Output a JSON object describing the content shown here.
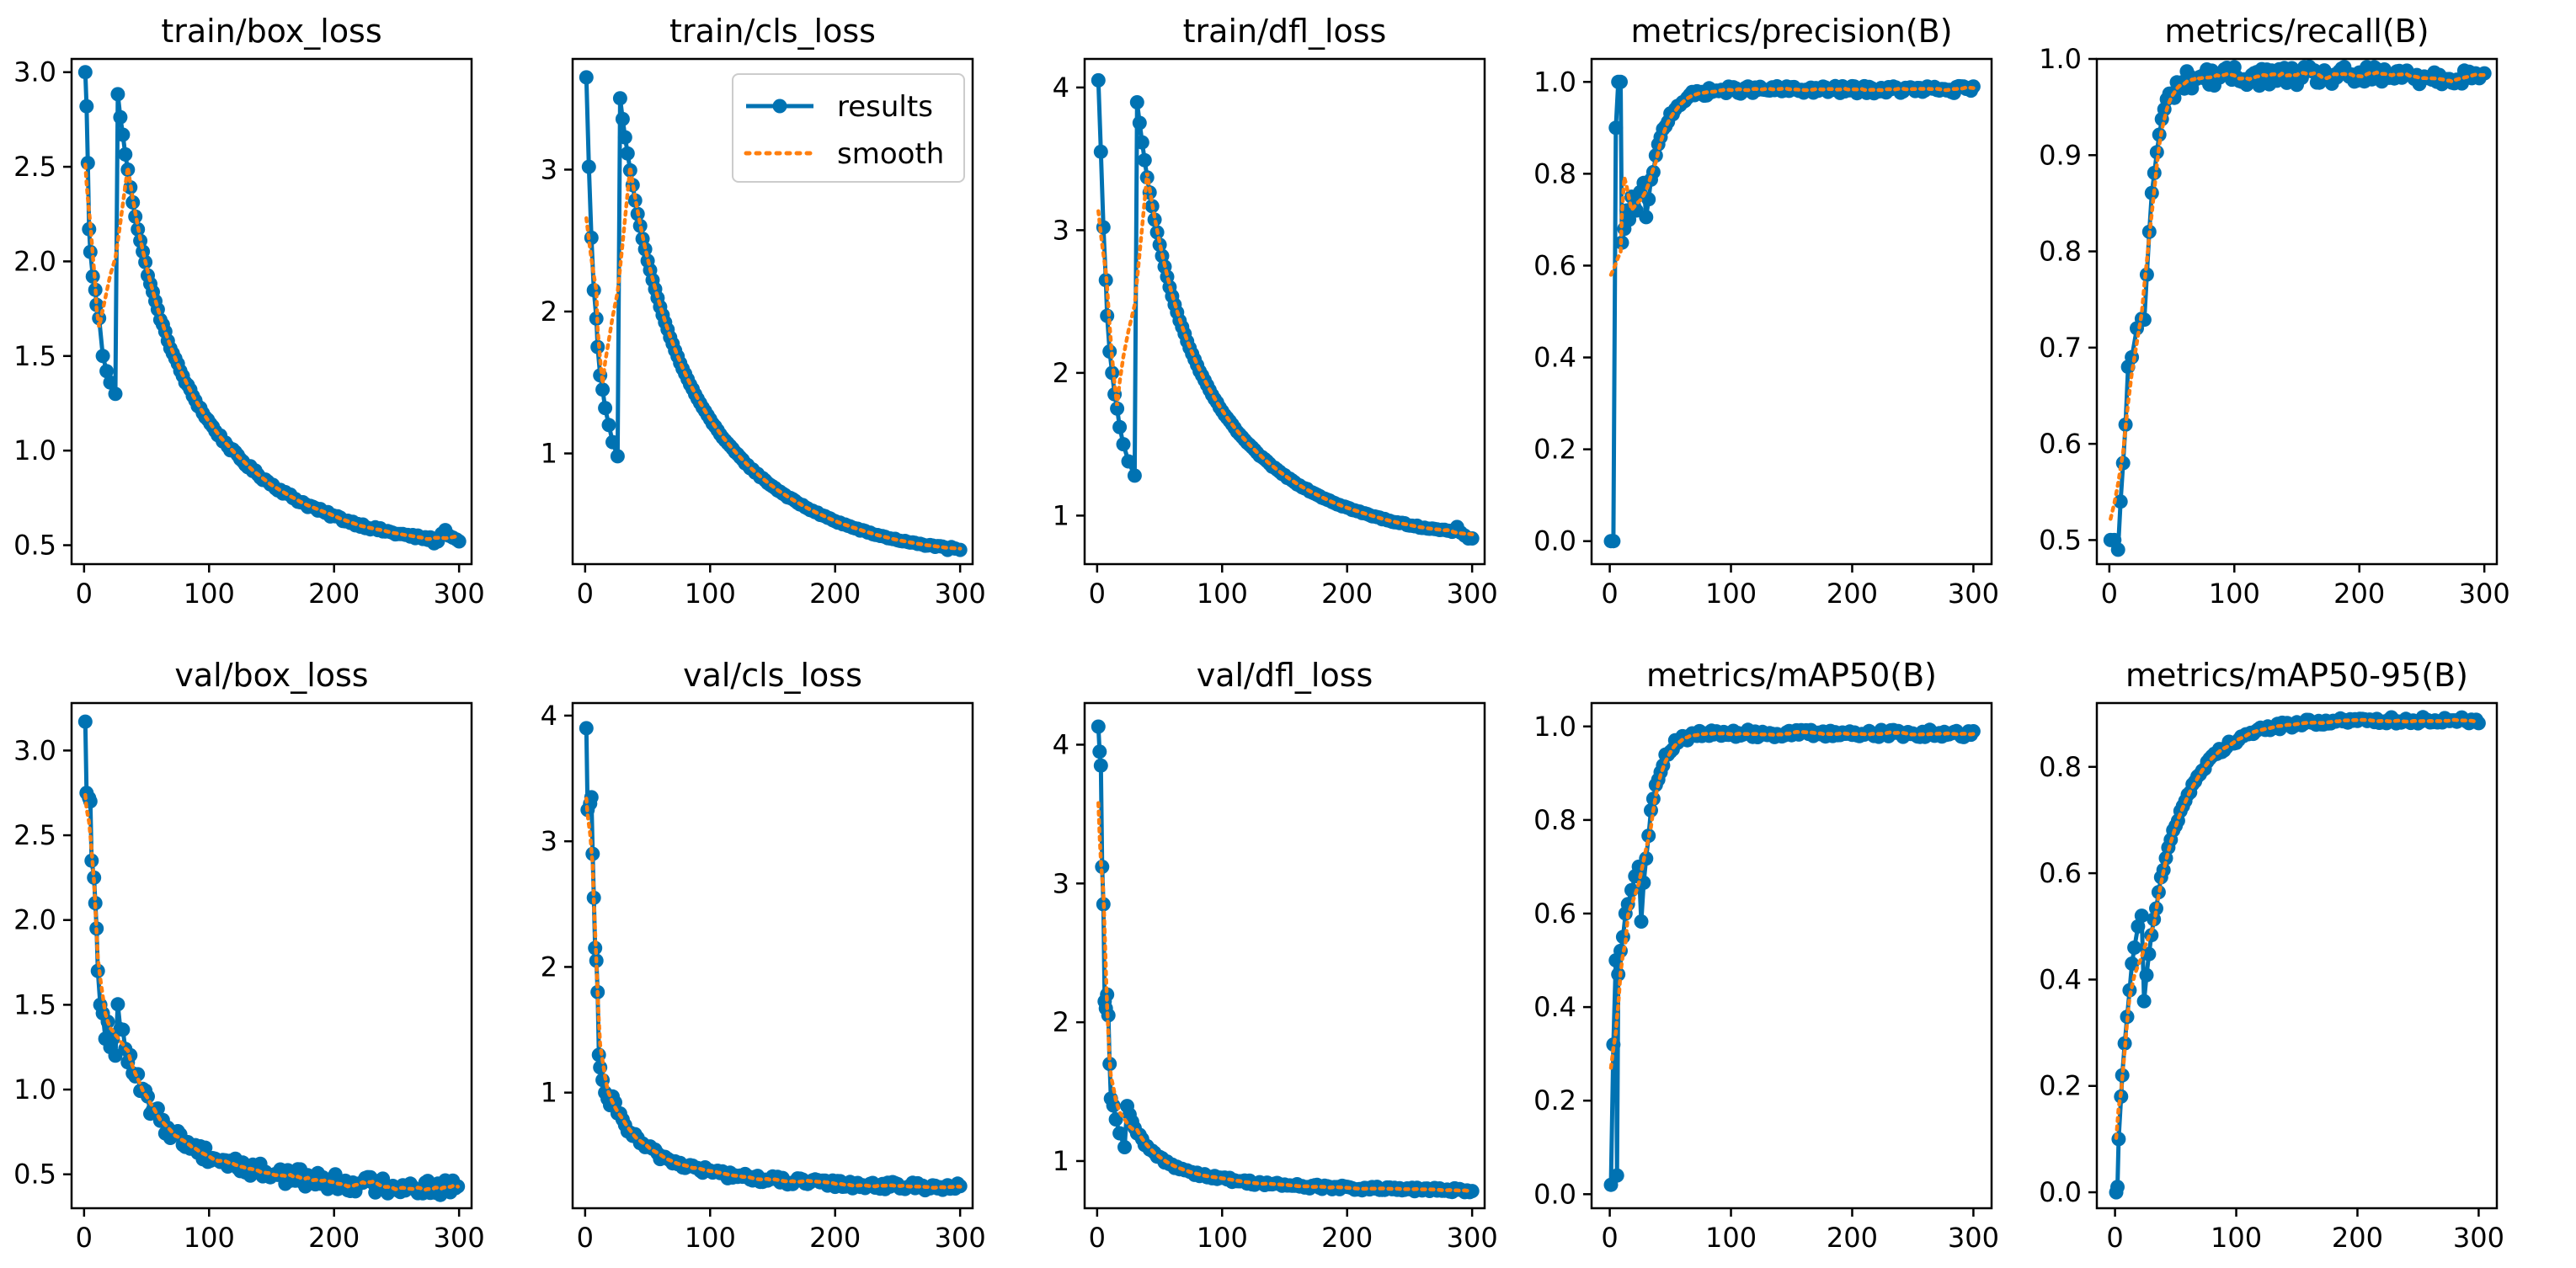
{
  "figure_title": "",
  "colors": {
    "results": "#0072B2",
    "smooth": "#FF7F0E",
    "axes": "#000000",
    "background": "#ffffff"
  },
  "legend": {
    "results_label": "results",
    "smooth_label": "smooth",
    "placement": "upper-right of train/cls_loss"
  },
  "chart_data": [
    {
      "type": "line",
      "title": "train/box_loss",
      "xlim": [
        -10,
        310
      ],
      "ylim": [
        0.4,
        3.07
      ],
      "xticks": [
        0,
        100,
        200,
        300
      ],
      "yticks": [
        0.5,
        1.0,
        1.5,
        2.0,
        2.5,
        3.0
      ],
      "curve": {
        "kind": "decay",
        "start": 3.0,
        "end": 0.52,
        "p": 1.0,
        "s": 0.18,
        "noise": 0.01
      },
      "early": [
        [
          1,
          3.0
        ],
        [
          2,
          2.82
        ],
        [
          3,
          2.52
        ],
        [
          4,
          2.17
        ],
        [
          5,
          2.05
        ],
        [
          7,
          1.92
        ],
        [
          9,
          1.85
        ],
        [
          10,
          1.77
        ],
        [
          12,
          1.7
        ],
        [
          15,
          1.5
        ],
        [
          18,
          1.42
        ],
        [
          21,
          1.36
        ],
        [
          25,
          1.3
        ]
      ],
      "late": [
        [
          280,
          0.51
        ],
        [
          283,
          0.52
        ],
        [
          286,
          0.56
        ],
        [
          289,
          0.58
        ],
        [
          292,
          0.55
        ],
        [
          295,
          0.54
        ],
        [
          298,
          0.53
        ],
        [
          300,
          0.52
        ]
      ]
    },
    {
      "type": "line",
      "title": "train/cls_loss",
      "xlim": [
        -10,
        310
      ],
      "ylim": [
        0.22,
        3.78
      ],
      "xticks": [
        0,
        100,
        200,
        300
      ],
      "yticks": [
        1,
        2,
        3
      ],
      "curve": {
        "kind": "decay",
        "start": 3.65,
        "end": 0.33,
        "p": 0.9,
        "s": 0.2,
        "noise": 0.005
      },
      "early": [
        [
          1,
          3.65
        ],
        [
          3,
          3.02
        ],
        [
          5,
          2.52
        ],
        [
          7,
          2.15
        ],
        [
          9,
          1.95
        ],
        [
          10,
          1.75
        ],
        [
          12,
          1.55
        ],
        [
          14,
          1.45
        ],
        [
          16,
          1.32
        ],
        [
          19,
          1.2
        ],
        [
          22,
          1.08
        ],
        [
          26,
          0.98
        ]
      ],
      "late": [
        [
          290,
          0.32
        ],
        [
          293,
          0.34
        ],
        [
          296,
          0.33
        ],
        [
          300,
          0.32
        ]
      ]
    },
    {
      "type": "line",
      "title": "train/dfl_loss",
      "xlim": [
        -10,
        310
      ],
      "ylim": [
        0.66,
        4.2
      ],
      "xticks": [
        0,
        100,
        200,
        300
      ],
      "yticks": [
        1,
        2,
        3,
        4
      ],
      "curve": {
        "kind": "decay",
        "start": 4.05,
        "end": 0.88,
        "p": 0.65,
        "s": 0.18,
        "noise": 0.005
      },
      "early": [
        [
          1,
          4.05
        ],
        [
          3,
          3.55
        ],
        [
          5,
          3.02
        ],
        [
          7,
          2.65
        ],
        [
          8,
          2.4
        ],
        [
          10,
          2.15
        ],
        [
          12,
          2.0
        ],
        [
          14,
          1.85
        ],
        [
          16,
          1.75
        ],
        [
          18,
          1.62
        ],
        [
          21,
          1.5
        ],
        [
          25,
          1.38
        ],
        [
          30,
          1.28
        ]
      ],
      "late": [
        [
          285,
          0.89
        ],
        [
          288,
          0.92
        ],
        [
          291,
          0.88
        ],
        [
          294,
          0.86
        ],
        [
          297,
          0.84
        ],
        [
          300,
          0.84
        ]
      ]
    },
    {
      "type": "line",
      "title": "metrics/precision(B)",
      "xlim": [
        -15,
        315
      ],
      "ylim": [
        -0.05,
        1.05
      ],
      "xticks": [
        0,
        100,
        200,
        300
      ],
      "yticks": [
        0.0,
        0.2,
        0.4,
        0.6,
        0.8,
        1.0
      ],
      "curve": {
        "kind": "rise",
        "start": 0.65,
        "end": 0.983,
        "p": 1.0,
        "s": 0.045,
        "noise": 0.008,
        "tau": 10
      },
      "early": [
        [
          1,
          0.0
        ],
        [
          3,
          0.0
        ],
        [
          5,
          0.9
        ],
        [
          7,
          1.0
        ],
        [
          9,
          1.0
        ],
        [
          10,
          0.65
        ],
        [
          12,
          0.68
        ],
        [
          14,
          0.72
        ],
        [
          16,
          0.7
        ],
        [
          18,
          0.75
        ],
        [
          20,
          0.73
        ],
        [
          22,
          0.72
        ],
        [
          25,
          0.76
        ],
        [
          28,
          0.78
        ]
      ],
      "late": []
    },
    {
      "type": "line",
      "title": "metrics/recall(B)",
      "xlim": [
        -10,
        310
      ],
      "ylim": [
        0.475,
        1.0
      ],
      "xticks": [
        0,
        100,
        200,
        300
      ],
      "yticks": [
        0.5,
        0.6,
        0.7,
        0.8,
        0.9,
        1.0
      ],
      "curve": {
        "kind": "rise",
        "start": 0.65,
        "end": 0.982,
        "p": 1.0,
        "s": 0.03,
        "noise": 0.01,
        "tau": 0
      },
      "early": [
        [
          1,
          0.5
        ],
        [
          4,
          0.5
        ],
        [
          7,
          0.49
        ],
        [
          9,
          0.54
        ],
        [
          11,
          0.58
        ],
        [
          13,
          0.62
        ],
        [
          15,
          0.68
        ],
        [
          18,
          0.69
        ],
        [
          22,
          0.72
        ],
        [
          26,
          0.73
        ]
      ],
      "late": [
        [
          290,
          0.98
        ],
        [
          293,
          0.985
        ],
        [
          296,
          0.98
        ],
        [
          300,
          0.985
        ]
      ]
    },
    {
      "type": "line",
      "title": "val/box_loss",
      "xlim": [
        -10,
        310
      ],
      "ylim": [
        0.3,
        3.28
      ],
      "xticks": [
        0,
        100,
        200,
        300
      ],
      "yticks": [
        0.5,
        1.0,
        1.5,
        2.0,
        2.5,
        3.0
      ],
      "curve": {
        "kind": "decay",
        "start": 1.55,
        "end": 0.42,
        "p": 0.9,
        "s": 0.1,
        "noise": 0.05
      },
      "early": [
        [
          1,
          3.17
        ],
        [
          2,
          2.75
        ],
        [
          4,
          2.72
        ],
        [
          5,
          2.7
        ],
        [
          6,
          2.35
        ],
        [
          8,
          2.25
        ],
        [
          9,
          2.1
        ],
        [
          10,
          1.95
        ],
        [
          11,
          1.7
        ],
        [
          13,
          1.5
        ],
        [
          15,
          1.45
        ],
        [
          17,
          1.3
        ],
        [
          19,
          1.4
        ],
        [
          21,
          1.25
        ],
        [
          23,
          1.3
        ],
        [
          25,
          1.2
        ]
      ],
      "late": []
    },
    {
      "type": "line",
      "title": "val/cls_loss",
      "xlim": [
        -10,
        310
      ],
      "ylim": [
        0.08,
        4.1
      ],
      "xticks": [
        0,
        100,
        200,
        300
      ],
      "yticks": [
        1,
        2,
        3,
        4
      ],
      "curve": {
        "kind": "decay",
        "start": 1.0,
        "end": 0.25,
        "p": 0.6,
        "s": 0.1,
        "noise": 0.03
      },
      "early": [
        [
          1,
          3.9
        ],
        [
          2,
          3.25
        ],
        [
          4,
          3.3
        ],
        [
          5,
          3.35
        ],
        [
          6,
          2.9
        ],
        [
          7,
          2.55
        ],
        [
          8,
          2.15
        ],
        [
          9,
          2.05
        ],
        [
          10,
          1.8
        ],
        [
          11,
          1.3
        ],
        [
          12,
          1.2
        ],
        [
          14,
          1.1
        ],
        [
          16,
          1.0
        ],
        [
          18,
          0.95
        ],
        [
          20,
          0.9
        ]
      ],
      "late": []
    },
    {
      "type": "line",
      "title": "val/dfl_loss",
      "xlim": [
        -10,
        310
      ],
      "ylim": [
        0.66,
        4.3
      ],
      "xticks": [
        0,
        100,
        200,
        300
      ],
      "yticks": [
        1,
        2,
        3,
        4
      ],
      "curve": {
        "kind": "decay",
        "start": 1.45,
        "end": 0.79,
        "p": 0.9,
        "s": 0.07,
        "noise": 0.015
      },
      "early": [
        [
          1,
          4.13
        ],
        [
          2,
          3.95
        ],
        [
          3,
          3.85
        ],
        [
          4,
          3.12
        ],
        [
          5,
          2.85
        ],
        [
          6,
          2.15
        ],
        [
          7,
          2.1
        ],
        [
          8,
          2.2
        ],
        [
          9,
          2.05
        ],
        [
          10,
          1.7
        ],
        [
          11,
          1.45
        ],
        [
          13,
          1.4
        ],
        [
          15,
          1.3
        ],
        [
          18,
          1.2
        ],
        [
          22,
          1.1
        ]
      ],
      "late": []
    },
    {
      "type": "line",
      "title": "metrics/mAP50(B)",
      "xlim": [
        -15,
        315
      ],
      "ylim": [
        -0.03,
        1.05
      ],
      "xticks": [
        0,
        100,
        200,
        300
      ],
      "yticks": [
        0.0,
        0.2,
        0.4,
        0.6,
        0.8,
        1.0
      ],
      "curve": {
        "kind": "rise",
        "start": 0.5,
        "end": 0.985,
        "p": 1.0,
        "s": 0.035,
        "noise": 0.008,
        "tau": 0
      },
      "early": [
        [
          1,
          0.02
        ],
        [
          3,
          0.32
        ],
        [
          5,
          0.5
        ],
        [
          6,
          0.04
        ],
        [
          7,
          0.47
        ],
        [
          9,
          0.52
        ],
        [
          11,
          0.55
        ],
        [
          13,
          0.6
        ],
        [
          15,
          0.62
        ],
        [
          18,
          0.65
        ],
        [
          21,
          0.68
        ],
        [
          24,
          0.7
        ]
      ],
      "late": []
    },
    {
      "type": "line",
      "title": "metrics/mAP50-95(B)",
      "xlim": [
        -15,
        315
      ],
      "ylim": [
        -0.03,
        0.92
      ],
      "xticks": [
        0,
        100,
        200,
        300
      ],
      "yticks": [
        0.0,
        0.2,
        0.4,
        0.6,
        0.8
      ],
      "curve": {
        "kind": "rise",
        "start": 0.3,
        "end": 0.888,
        "p": 0.8,
        "s": 0.11,
        "noise": 0.006,
        "tau": 0
      },
      "early": [
        [
          1,
          0.0
        ],
        [
          2,
          0.01
        ],
        [
          3,
          0.1
        ],
        [
          5,
          0.18
        ],
        [
          6,
          0.22
        ],
        [
          8,
          0.28
        ],
        [
          10,
          0.33
        ],
        [
          12,
          0.38
        ],
        [
          14,
          0.43
        ],
        [
          16,
          0.46
        ],
        [
          19,
          0.5
        ],
        [
          22,
          0.52
        ]
      ],
      "late": []
    }
  ]
}
